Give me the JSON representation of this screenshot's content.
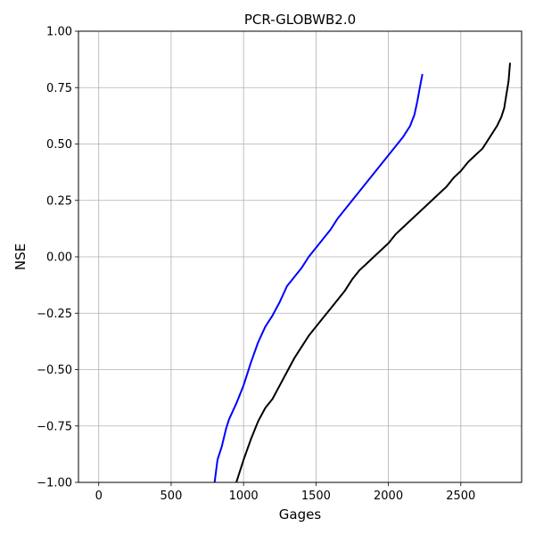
{
  "chart_data": {
    "type": "line",
    "title": "PCR-GLOBWB2.0",
    "xlabel": "Gages",
    "ylabel": "NSE",
    "xlim": [
      -140,
      2920
    ],
    "ylim": [
      -1.0,
      1.0
    ],
    "xticks": [
      0,
      500,
      1000,
      1500,
      2000,
      2500
    ],
    "xtick_labels": [
      "0",
      "500",
      "1000",
      "1500",
      "2000",
      "2500"
    ],
    "yticks": [
      -1.0,
      -0.75,
      -0.5,
      -0.25,
      0.0,
      0.25,
      0.5,
      0.75,
      1.0
    ],
    "ytick_labels": [
      "−1.00",
      "−0.75",
      "−0.50",
      "−0.25",
      "0.00",
      "0.25",
      "0.50",
      "0.75",
      "1.00"
    ],
    "grid": true,
    "series": [
      {
        "color": "#0000ff",
        "points": [
          [
            800,
            -1.0
          ],
          [
            820,
            -0.9
          ],
          [
            850,
            -0.84
          ],
          [
            880,
            -0.76
          ],
          [
            900,
            -0.72
          ],
          [
            950,
            -0.65
          ],
          [
            1000,
            -0.57
          ],
          [
            1050,
            -0.47
          ],
          [
            1100,
            -0.38
          ],
          [
            1150,
            -0.31
          ],
          [
            1200,
            -0.26
          ],
          [
            1250,
            -0.2
          ],
          [
            1300,
            -0.13
          ],
          [
            1350,
            -0.09
          ],
          [
            1400,
            -0.05
          ],
          [
            1450,
            0.0
          ],
          [
            1500,
            0.04
          ],
          [
            1550,
            0.08
          ],
          [
            1600,
            0.12
          ],
          [
            1650,
            0.17
          ],
          [
            1700,
            0.21
          ],
          [
            1750,
            0.25
          ],
          [
            1800,
            0.29
          ],
          [
            1850,
            0.33
          ],
          [
            1900,
            0.37
          ],
          [
            1950,
            0.41
          ],
          [
            2000,
            0.45
          ],
          [
            2050,
            0.49
          ],
          [
            2100,
            0.53
          ],
          [
            2150,
            0.58
          ],
          [
            2180,
            0.63
          ],
          [
            2200,
            0.69
          ],
          [
            2220,
            0.76
          ],
          [
            2235,
            0.81
          ]
        ]
      },
      {
        "color": "#000000",
        "points": [
          [
            950,
            -1.0
          ],
          [
            970,
            -0.96
          ],
          [
            1000,
            -0.9
          ],
          [
            1050,
            -0.81
          ],
          [
            1100,
            -0.73
          ],
          [
            1150,
            -0.67
          ],
          [
            1200,
            -0.63
          ],
          [
            1250,
            -0.57
          ],
          [
            1300,
            -0.51
          ],
          [
            1350,
            -0.45
          ],
          [
            1400,
            -0.4
          ],
          [
            1450,
            -0.35
          ],
          [
            1500,
            -0.31
          ],
          [
            1550,
            -0.27
          ],
          [
            1600,
            -0.23
          ],
          [
            1650,
            -0.19
          ],
          [
            1700,
            -0.15
          ],
          [
            1750,
            -0.1
          ],
          [
            1800,
            -0.06
          ],
          [
            1850,
            -0.03
          ],
          [
            1900,
            0.0
          ],
          [
            1950,
            0.03
          ],
          [
            2000,
            0.06
          ],
          [
            2050,
            0.1
          ],
          [
            2100,
            0.13
          ],
          [
            2150,
            0.16
          ],
          [
            2200,
            0.19
          ],
          [
            2250,
            0.22
          ],
          [
            2300,
            0.25
          ],
          [
            2350,
            0.28
          ],
          [
            2400,
            0.31
          ],
          [
            2450,
            0.35
          ],
          [
            2500,
            0.38
          ],
          [
            2550,
            0.42
          ],
          [
            2600,
            0.45
          ],
          [
            2650,
            0.48
          ],
          [
            2700,
            0.53
          ],
          [
            2750,
            0.58
          ],
          [
            2780,
            0.62
          ],
          [
            2800,
            0.66
          ],
          [
            2815,
            0.72
          ],
          [
            2830,
            0.78
          ],
          [
            2840,
            0.86
          ]
        ]
      }
    ]
  }
}
